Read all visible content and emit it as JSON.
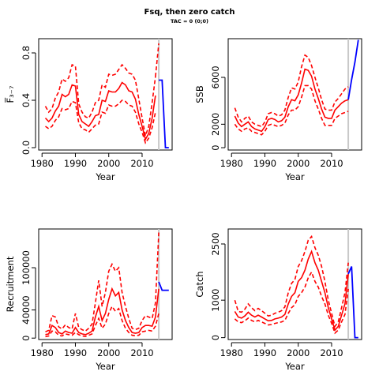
{
  "figure": {
    "title": "Fsq, then zero catch",
    "subtitle": "TAC = 0 (0;0)",
    "hist_end_year": 2015
  },
  "chart_data": [
    {
      "id": "fbar",
      "type": "line",
      "ylabel": "F̅₃₋₇",
      "xlabel": "Year",
      "xlim": [
        1979,
        2019
      ],
      "ylim": [
        -0.02,
        0.92
      ],
      "xticks": [
        1980,
        1990,
        2000,
        2010
      ],
      "yticks": [
        0.0,
        0.4,
        0.8
      ],
      "ytick_labels": [
        "0.0",
        "0.4",
        "0.8"
      ],
      "x": [
        1981,
        1982,
        1983,
        1984,
        1985,
        1986,
        1987,
        1988,
        1989,
        1990,
        1991,
        1992,
        1993,
        1994,
        1995,
        1996,
        1997,
        1998,
        1999,
        2000,
        2001,
        2002,
        2003,
        2004,
        2005,
        2006,
        2007,
        2008,
        2009,
        2010,
        2011,
        2012,
        2013,
        2014
      ],
      "series": [
        {
          "role": "median",
          "style": "solid",
          "color": "#ff0000",
          "values": [
            0.25,
            0.22,
            0.25,
            0.31,
            0.35,
            0.45,
            0.43,
            0.45,
            0.53,
            0.52,
            0.28,
            0.22,
            0.2,
            0.18,
            0.22,
            0.27,
            0.28,
            0.4,
            0.39,
            0.48,
            0.47,
            0.47,
            0.5,
            0.55,
            0.53,
            0.48,
            0.47,
            0.41,
            0.28,
            0.18,
            0.07,
            0.12,
            0.25,
            0.44
          ]
        },
        {
          "role": "upper",
          "style": "dashed",
          "color": "#ff0000",
          "values": [
            0.35,
            0.3,
            0.33,
            0.42,
            0.47,
            0.58,
            0.56,
            0.59,
            0.7,
            0.69,
            0.37,
            0.3,
            0.26,
            0.25,
            0.3,
            0.38,
            0.4,
            0.53,
            0.51,
            0.62,
            0.61,
            0.62,
            0.66,
            0.7,
            0.67,
            0.63,
            0.62,
            0.57,
            0.41,
            0.25,
            0.1,
            0.18,
            0.38,
            0.6
          ]
        },
        {
          "role": "lower",
          "style": "dashed",
          "color": "#ff0000",
          "values": [
            0.18,
            0.16,
            0.18,
            0.23,
            0.26,
            0.33,
            0.32,
            0.33,
            0.39,
            0.38,
            0.21,
            0.16,
            0.15,
            0.13,
            0.16,
            0.19,
            0.2,
            0.3,
            0.29,
            0.36,
            0.35,
            0.35,
            0.37,
            0.4,
            0.39,
            0.36,
            0.35,
            0.3,
            0.2,
            0.13,
            0.04,
            0.08,
            0.17,
            0.3
          ]
        }
      ],
      "upper_tail": {
        "x": [
          2014,
          2015
        ],
        "values": [
          0.6,
          0.88
        ]
      },
      "projection": {
        "color": "#0000ff",
        "x": [
          2015,
          2016,
          2017,
          2018
        ],
        "values": [
          0.57,
          0.57,
          0.0,
          0.0
        ]
      }
    },
    {
      "id": "ssb",
      "type": "line",
      "ylabel": "SSB",
      "xlabel": "Year",
      "xlim": [
        1979,
        2019
      ],
      "ylim": [
        -200,
        9300
      ],
      "xticks": [
        1980,
        1990,
        2000,
        2010
      ],
      "yticks": [
        0,
        2000,
        6000
      ],
      "ytick_labels": [
        "0",
        "2000",
        "6000"
      ],
      "x": [
        1981,
        1982,
        1983,
        1984,
        1985,
        1986,
        1987,
        1988,
        1989,
        1990,
        1991,
        1992,
        1993,
        1994,
        1995,
        1996,
        1997,
        1998,
        1999,
        2000,
        2001,
        2002,
        2003,
        2004,
        2005,
        2006,
        2007,
        2008,
        2009,
        2010,
        2011,
        2012,
        2013,
        2014,
        2015
      ],
      "series": [
        {
          "role": "median",
          "style": "solid",
          "color": "#ff0000",
          "values": [
            2700,
            2100,
            1800,
            2000,
            2200,
            1800,
            1600,
            1500,
            1400,
            1800,
            2400,
            2500,
            2400,
            2200,
            2300,
            2600,
            3500,
            4100,
            4000,
            4500,
            5500,
            6700,
            6600,
            6100,
            5000,
            4200,
            3300,
            2600,
            2500,
            2500,
            3200,
            3500,
            3800,
            4000,
            4100
          ]
        },
        {
          "role": "upper",
          "style": "dashed",
          "color": "#ff0000",
          "values": [
            3400,
            2600,
            2200,
            2500,
            2700,
            2200,
            2000,
            1900,
            1800,
            2200,
            2900,
            3000,
            2900,
            2700,
            2800,
            3200,
            4300,
            5100,
            5000,
            5600,
            6900,
            7900,
            7700,
            7000,
            6000,
            5100,
            4100,
            3300,
            3200,
            3200,
            3900,
            4200,
            4600,
            5000,
            5200
          ]
        },
        {
          "role": "lower",
          "style": "dashed",
          "color": "#ff0000",
          "values": [
            2000,
            1600,
            1400,
            1600,
            1700,
            1400,
            1300,
            1200,
            1100,
            1400,
            1900,
            2000,
            1900,
            1800,
            1900,
            2100,
            2800,
            3200,
            3200,
            3500,
            4300,
            5300,
            5300,
            5000,
            4000,
            3300,
            2500,
            1900,
            1900,
            1900,
            2500,
            2700,
            2900,
            3000,
            3100
          ]
        }
      ],
      "projection": {
        "color": "#0000ff",
        "x": [
          2015,
          2016,
          2017,
          2018
        ],
        "values": [
          4100,
          5800,
          7300,
          9200
        ]
      }
    },
    {
      "id": "recruitment",
      "type": "line",
      "ylabel": "Recruitment",
      "xlabel": "Year",
      "xlim": [
        1979,
        2019
      ],
      "ylim": [
        -2000,
        155000
      ],
      "xticks": [
        1980,
        1990,
        2000,
        2010
      ],
      "yticks": [
        0,
        40000,
        100000
      ],
      "ytick_labels": [
        "0",
        "40000",
        "100000"
      ],
      "x": [
        1981,
        1982,
        1983,
        1984,
        1985,
        1986,
        1987,
        1988,
        1989,
        1990,
        1991,
        1992,
        1993,
        1994,
        1995,
        1996,
        1997,
        1998,
        1999,
        2000,
        2001,
        2002,
        2003,
        2004,
        2005,
        2006,
        2007,
        2008,
        2009,
        2010,
        2011,
        2012,
        2013,
        2014,
        2015
      ],
      "series": [
        {
          "role": "median",
          "style": "solid",
          "color": "#ff0000",
          "values": [
            5000,
            6000,
            18000,
            15000,
            8000,
            6000,
            10000,
            8000,
            7000,
            15000,
            8000,
            6000,
            5000,
            7000,
            10000,
            30000,
            45000,
            25000,
            35000,
            55000,
            70000,
            60000,
            65000,
            40000,
            25000,
            15000,
            8000,
            7000,
            8000,
            15000,
            18000,
            18000,
            17000,
            30000,
            70000
          ]
        },
        {
          "role": "upper",
          "style": "dashed",
          "color": "#ff0000",
          "values": [
            9000,
            11000,
            32000,
            30000,
            16000,
            13000,
            19000,
            15000,
            13000,
            35000,
            15000,
            12000,
            10000,
            14000,
            20000,
            50000,
            82000,
            45000,
            65000,
            95000,
            105000,
            95000,
            100000,
            65000,
            45000,
            28000,
            14000,
            12000,
            14000,
            25000,
            32000,
            30000,
            28000,
            50000,
            150000
          ]
        },
        {
          "role": "lower",
          "style": "dashed",
          "color": "#ff0000",
          "values": [
            2000,
            3000,
            10000,
            9000,
            4000,
            3000,
            6000,
            5000,
            4000,
            8000,
            5000,
            3000,
            2500,
            4000,
            6000,
            18000,
            28000,
            14000,
            20000,
            35000,
            45000,
            38000,
            42000,
            25000,
            14000,
            8000,
            4000,
            3500,
            4000,
            9000,
            10000,
            11000,
            10000,
            17000,
            35000
          ]
        }
      ],
      "projection": {
        "color": "#0000ff",
        "x": [
          2015,
          2016,
          2017,
          2018
        ],
        "values": [
          80000,
          68000,
          68000,
          68000
        ]
      }
    },
    {
      "id": "catch",
      "type": "line",
      "ylabel": "Catch",
      "xlabel": "Year",
      "xlim": [
        1979,
        2019
      ],
      "ylim": [
        -50,
        2900
      ],
      "xticks": [
        1980,
        1990,
        2000,
        2010
      ],
      "yticks": [
        0,
        1000,
        2500
      ],
      "ytick_labels": [
        "0",
        "1000",
        "2500"
      ],
      "x": [
        1981,
        1982,
        1983,
        1984,
        1985,
        1986,
        1987,
        1988,
        1989,
        1990,
        1991,
        1992,
        1993,
        1994,
        1995,
        1996,
        1997,
        1998,
        1999,
        2000,
        2001,
        2002,
        2003,
        2004,
        2005,
        2006,
        2007,
        2008,
        2009,
        2010,
        2011,
        2012,
        2013,
        2014,
        2015
      ],
      "series": [
        {
          "role": "median",
          "style": "solid",
          "color": "#ff0000",
          "values": [
            700,
            550,
            520,
            580,
            680,
            600,
            550,
            600,
            550,
            500,
            450,
            460,
            500,
            520,
            550,
            620,
            900,
            1100,
            1200,
            1500,
            1600,
            1800,
            2100,
            2300,
            2000,
            1800,
            1500,
            1200,
            800,
            500,
            200,
            300,
            600,
            900,
            1700
          ]
        },
        {
          "role": "upper",
          "style": "dashed",
          "color": "#ff0000",
          "values": [
            1000,
            700,
            680,
            760,
            900,
            800,
            720,
            780,
            720,
            650,
            580,
            600,
            650,
            680,
            720,
            820,
            1200,
            1450,
            1550,
            1900,
            2050,
            2300,
            2600,
            2700,
            2400,
            2200,
            1900,
            1500,
            1000,
            650,
            300,
            420,
            800,
            1200,
            2000
          ]
        },
        {
          "role": "lower",
          "style": "dashed",
          "color": "#ff0000",
          "values": [
            500,
            420,
            400,
            450,
            520,
            460,
            420,
            460,
            420,
            380,
            340,
            350,
            380,
            400,
            420,
            460,
            650,
            800,
            880,
            1100,
            1200,
            1350,
            1600,
            1750,
            1500,
            1350,
            1100,
            900,
            600,
            380,
            120,
            200,
            420,
            620,
            1300
          ]
        }
      ],
      "projection": {
        "color": "#0000ff",
        "x": [
          2015,
          2016,
          2017,
          2018
        ],
        "values": [
          1700,
          1900,
          0,
          0
        ]
      }
    }
  ]
}
